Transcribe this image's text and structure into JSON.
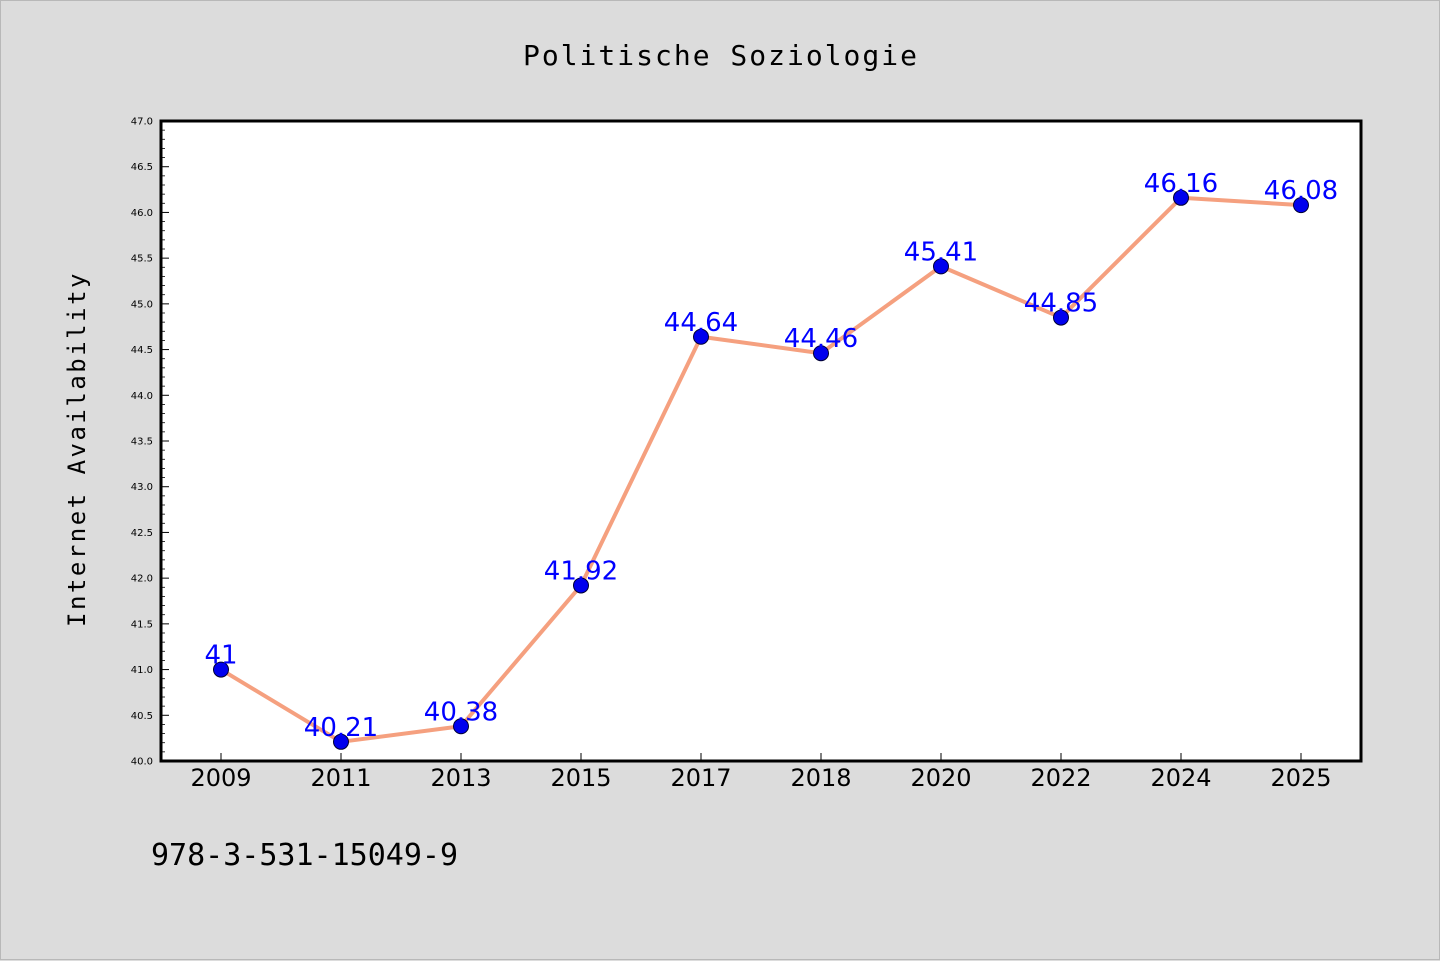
{
  "chart_data": {
    "type": "line",
    "title": "Politische Soziologie",
    "xlabel": "",
    "ylabel": "Internet Availability",
    "categories": [
      "2009",
      "2011",
      "2013",
      "2015",
      "2017",
      "2018",
      "2020",
      "2022",
      "2024",
      "2025"
    ],
    "series": [
      {
        "values": [
          41,
          40.21,
          40.38,
          41.92,
          44.64,
          44.46,
          45.41,
          44.85,
          46.16,
          46.08
        ],
        "labels": [
          "41",
          "40.21",
          "40.38",
          "41.92",
          "44.64",
          "44.46",
          "45.41",
          "44.85",
          "46.16",
          "46.08"
        ]
      }
    ],
    "ylim": [
      40.0,
      47.0
    ],
    "y_ticks": [
      "40.0",
      "40.5",
      "41.0",
      "41.5",
      "42.0",
      "42.5",
      "43.0",
      "43.5",
      "44.0",
      "44.5",
      "45.0",
      "45.5",
      "46.0",
      "46.5",
      "47.0"
    ],
    "grid": false,
    "legend": "none",
    "colors": {
      "line": "#f5a07f",
      "marker": "#0000ee",
      "data_label": "#0000ff",
      "background": "#dcdcdc",
      "plot_area": "#ffffff"
    }
  },
  "footer": {
    "isbn": "978-3-531-15049-9"
  }
}
